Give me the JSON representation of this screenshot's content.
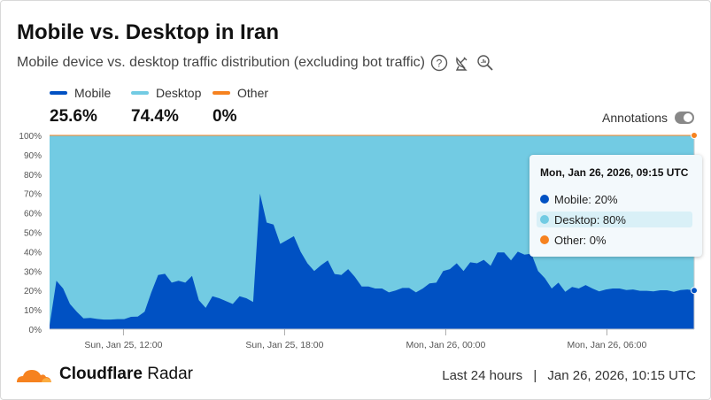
{
  "header": {
    "title": "Mobile vs. Desktop in Iran",
    "subtitle": "Mobile device vs. desktop traffic distribution (excluding bot traffic)",
    "icons": [
      "help-icon",
      "satellite-icon",
      "explore-icon"
    ]
  },
  "legend": [
    {
      "label": "Mobile",
      "value": "25.6%",
      "color": "#0051c3"
    },
    {
      "label": "Desktop",
      "value": "74.4%",
      "color": "#72cbe3"
    },
    {
      "label": "Other",
      "value": "0%",
      "color": "#f6821f"
    }
  ],
  "annotations": {
    "label": "Annotations",
    "enabled": false
  },
  "tooltip": {
    "title": "Mon, Jan 26, 2026, 09:15 UTC",
    "rows": [
      "Mobile: 20%",
      "Desktop: 80%",
      "Other: 0%"
    ]
  },
  "chart_data": {
    "type": "area",
    "stacked": true,
    "x_start": "Sun, Jan 25, 09:15 UTC",
    "x_end": "Mon, Jan 26, 09:15 UTC",
    "interval": "15 minutes",
    "xticks": [
      "Sun, Jan 25, 12:00",
      "Sun, Jan 25, 18:00",
      "Mon, Jan 26, 00:00",
      "Mon, Jan 26, 06:00"
    ],
    "xtick_hours_from_start": [
      2.75,
      8.75,
      14.75,
      20.75
    ],
    "yticks": [
      "0%",
      "10%",
      "20%",
      "30%",
      "40%",
      "50%",
      "60%",
      "70%",
      "80%",
      "90%",
      "100%"
    ],
    "ylim": [
      0,
      100
    ],
    "series": [
      {
        "name": "Mobile",
        "color": "#0051c3",
        "values": [
          2,
          25,
          21,
          13,
          9,
          5.6,
          5.8,
          5.3,
          5,
          5,
          5.2,
          5.2,
          6.4,
          6.5,
          9,
          19,
          28,
          28.6,
          24,
          25,
          24,
          27.5,
          15,
          11,
          17,
          16,
          14.5,
          13,
          17,
          16,
          14,
          70,
          55,
          54,
          44,
          46,
          48,
          40,
          34,
          30,
          33,
          35.5,
          28.5,
          28,
          31,
          27,
          22,
          22,
          21,
          21,
          19,
          20,
          21.3,
          21.3,
          19,
          21,
          23.6,
          24,
          30,
          31,
          34,
          30,
          34.5,
          34,
          35.8,
          32.7,
          39.6,
          39.6,
          35.5,
          40,
          38.5,
          39,
          30,
          26.3,
          21,
          24,
          19.3,
          21.8,
          21,
          22.8,
          21,
          19.5,
          20.5,
          21,
          21,
          20.2,
          20.5,
          19.8,
          19.8,
          19.5,
          20.1,
          20.1,
          19.3,
          20.2,
          20.5,
          20
        ]
      },
      {
        "name": "Desktop",
        "color": "#72cbe3",
        "values": "100 - Mobile"
      },
      {
        "name": "Other",
        "color": "#f6821f",
        "values": "0 throughout"
      }
    ]
  },
  "footer": {
    "brand_bold": "Cloudflare",
    "brand_light": "Radar",
    "range": "Last 24 hours",
    "separator": "|",
    "timestamp": "Jan 26, 2026, 10:15 UTC"
  }
}
